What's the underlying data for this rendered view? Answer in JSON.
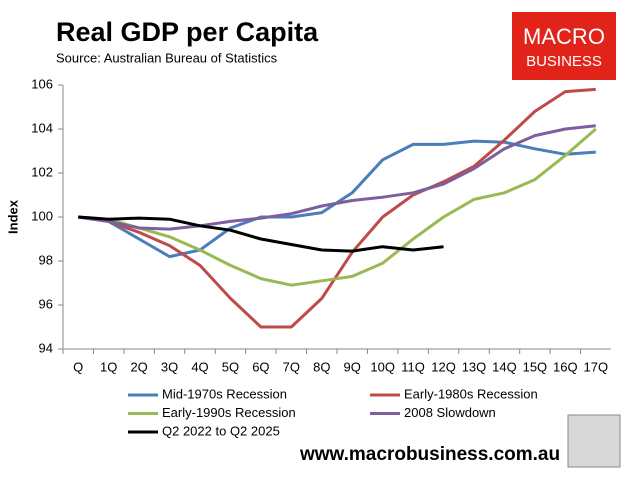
{
  "chart_data": {
    "type": "line",
    "title": "Real GDP per Capita",
    "subtitle": "Source: Australian Bureau of Statistics",
    "y_label": "Index",
    "categories": [
      "Q",
      "1Q",
      "2Q",
      "3Q",
      "4Q",
      "5Q",
      "6Q",
      "7Q",
      "8Q",
      "9Q",
      "10Q",
      "11Q",
      "12Q",
      "13Q",
      "14Q",
      "15Q",
      "16Q",
      "17Q"
    ],
    "series": [
      {
        "name": "Mid-1970s Recession",
        "color": "#4a7ebb",
        "values": [
          100,
          99.8,
          99.0,
          98.2,
          98.5,
          99.5,
          100.0,
          100.0,
          100.2,
          101.1,
          102.6,
          103.3,
          103.3,
          103.45,
          103.4,
          103.1,
          102.85,
          102.95
        ]
      },
      {
        "name": "Early-1980s Recession",
        "color": "#be4b48",
        "values": [
          100,
          99.8,
          99.3,
          98.7,
          97.8,
          96.3,
          95.0,
          95.0,
          96.3,
          98.4,
          100.0,
          101.0,
          101.6,
          102.3,
          103.5,
          104.8,
          105.7,
          105.8
        ]
      },
      {
        "name": "Early-1990s Recession",
        "color": "#98b954",
        "values": [
          100,
          99.9,
          99.5,
          99.1,
          98.5,
          97.8,
          97.2,
          96.9,
          97.1,
          97.3,
          97.9,
          99.0,
          100.0,
          100.8,
          101.1,
          101.7,
          102.8,
          104.0
        ]
      },
      {
        "name": "2008 Slowdown",
        "color": "#7d5fa0",
        "values": [
          100,
          99.8,
          99.5,
          99.45,
          99.6,
          99.8,
          99.95,
          100.15,
          100.5,
          100.75,
          100.9,
          101.1,
          101.5,
          102.2,
          103.1,
          103.7,
          104.0,
          104.15
        ]
      },
      {
        "name": "Q2 2022 to Q2 2025",
        "color": "#000000",
        "values": [
          100,
          99.9,
          99.95,
          99.9,
          99.6,
          99.4,
          99.0,
          98.75,
          98.5,
          98.45,
          98.65,
          98.5,
          98.65,
          null,
          null,
          null,
          null,
          null
        ]
      }
    ],
    "ylim": [
      94,
      106
    ],
    "yticks": [
      94,
      96,
      98,
      100,
      102,
      104,
      106
    ],
    "grid": false
  },
  "logo": {
    "line1": "MACRO",
    "line2": "BUSINESS"
  },
  "footer": {
    "url": "www.macrobusiness.com.au"
  }
}
